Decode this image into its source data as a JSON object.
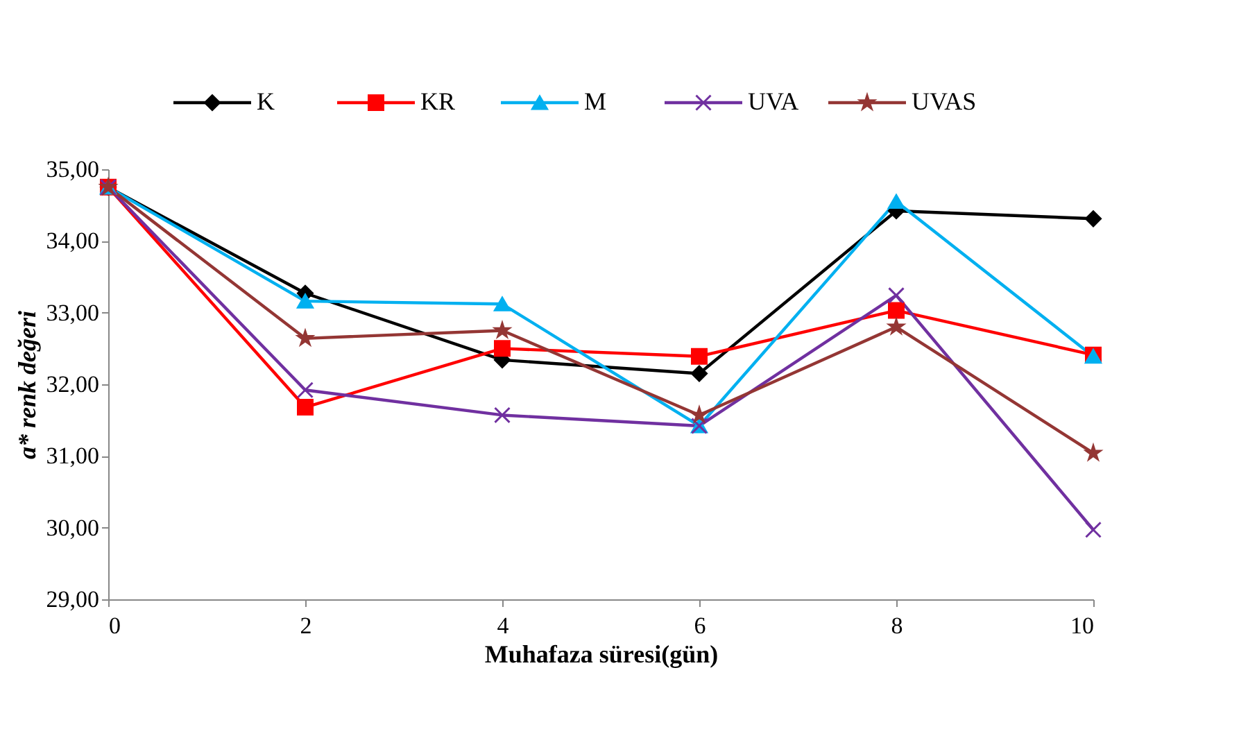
{
  "chart_data": {
    "type": "line",
    "xlabel": "Muhafaza süresi(gün)",
    "ylabel": "a* renk değeri",
    "x": [
      0,
      2,
      4,
      6,
      8,
      10
    ],
    "xlim": [
      0,
      10
    ],
    "xticks": [
      0,
      2,
      4,
      6,
      8,
      10
    ],
    "ylim": [
      29,
      35
    ],
    "yticks": [
      {
        "value": 29,
        "label": "29,00"
      },
      {
        "value": 30,
        "label": "30,00"
      },
      {
        "value": 31,
        "label": "31,00"
      },
      {
        "value": 32,
        "label": "32,00"
      },
      {
        "value": 33,
        "label": "33,00"
      },
      {
        "value": 34,
        "label": "34,00"
      },
      {
        "value": 35,
        "label": "35,00"
      }
    ],
    "grid": false,
    "legend": "top",
    "line_style": "solid",
    "series": [
      {
        "name": "K",
        "color": "#000000",
        "marker": "diamond",
        "values": [
          34.75,
          33.27,
          32.34,
          32.15,
          34.42,
          34.31
        ]
      },
      {
        "name": "KR",
        "color": "#ff0000",
        "marker": "square",
        "values": [
          34.75,
          31.68,
          32.5,
          32.39,
          33.03,
          32.41
        ]
      },
      {
        "name": "M",
        "color": "#00b0f0",
        "marker": "triangle",
        "values": [
          34.75,
          33.16,
          33.12,
          31.42,
          34.55,
          32.39
        ]
      },
      {
        "name": "UVA",
        "color": "#7030a0",
        "marker": "cross",
        "values": [
          34.75,
          31.92,
          31.57,
          31.42,
          33.24,
          29.97
        ]
      },
      {
        "name": "UVAS",
        "color": "#943634",
        "marker": "star",
        "values": [
          34.75,
          32.64,
          32.75,
          31.57,
          32.8,
          31.04
        ]
      }
    ]
  }
}
